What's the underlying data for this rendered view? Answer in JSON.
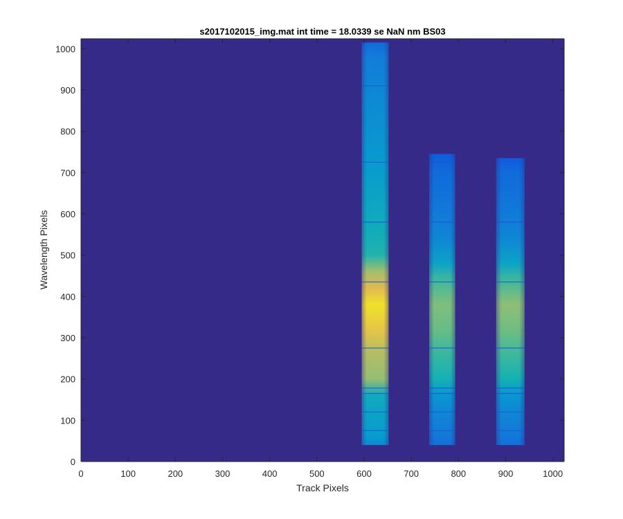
{
  "chart_data": {
    "type": "heatmap",
    "title": "s2017102015_img.mat int time = 18.0339 se  NaN nm BS03",
    "xlabel": "Track Pixels",
    "ylabel": "Wavelength Pixels",
    "xlim": [
      0,
      1024
    ],
    "ylim": [
      0,
      1024
    ],
    "xticks": [
      0,
      100,
      200,
      300,
      400,
      500,
      600,
      700,
      800,
      900,
      1000
    ],
    "yticks": [
      0,
      100,
      200,
      300,
      400,
      500,
      600,
      700,
      800,
      900,
      1000
    ],
    "grid": false,
    "colormap": "parula",
    "colors": {
      "background": "#352a87",
      "band_low": "#0d5ce0",
      "band_mid": "#14b7d0",
      "band_high": "#f2d21f",
      "axis": "#262626"
    },
    "bands": [
      {
        "x": [
          595,
          652
        ],
        "y": [
          40,
          1015
        ],
        "profile": [
          [
            40,
            0.35
          ],
          [
            60,
            0.45
          ],
          [
            90,
            0.48
          ],
          [
            120,
            0.5
          ],
          [
            160,
            0.55
          ],
          [
            200,
            0.78
          ],
          [
            260,
            0.82
          ],
          [
            320,
            0.92
          ],
          [
            380,
            0.96
          ],
          [
            420,
            0.9
          ],
          [
            460,
            0.8
          ],
          [
            500,
            0.62
          ],
          [
            560,
            0.56
          ],
          [
            620,
            0.52
          ],
          [
            700,
            0.46
          ],
          [
            800,
            0.4
          ],
          [
            900,
            0.35
          ],
          [
            980,
            0.3
          ],
          [
            1015,
            0.22
          ]
        ]
      },
      {
        "x": [
          738,
          793
        ],
        "y": [
          40,
          745
        ],
        "profile": [
          [
            40,
            0.25
          ],
          [
            80,
            0.3
          ],
          [
            120,
            0.35
          ],
          [
            160,
            0.42
          ],
          [
            200,
            0.6
          ],
          [
            260,
            0.65
          ],
          [
            320,
            0.72
          ],
          [
            380,
            0.75
          ],
          [
            440,
            0.66
          ],
          [
            480,
            0.5
          ],
          [
            540,
            0.35
          ],
          [
            620,
            0.27
          ],
          [
            700,
            0.22
          ],
          [
            745,
            0.15
          ]
        ]
      },
      {
        "x": [
          880,
          940
        ],
        "y": [
          40,
          735
        ],
        "profile": [
          [
            40,
            0.25
          ],
          [
            80,
            0.3
          ],
          [
            120,
            0.35
          ],
          [
            160,
            0.42
          ],
          [
            200,
            0.6
          ],
          [
            260,
            0.66
          ],
          [
            320,
            0.73
          ],
          [
            380,
            0.77
          ],
          [
            440,
            0.66
          ],
          [
            480,
            0.5
          ],
          [
            540,
            0.35
          ],
          [
            620,
            0.27
          ],
          [
            700,
            0.22
          ],
          [
            735,
            0.15
          ]
        ]
      }
    ],
    "dark_lines": [
      75,
      120,
      165,
      178,
      275,
      435,
      580,
      725,
      910
    ]
  }
}
